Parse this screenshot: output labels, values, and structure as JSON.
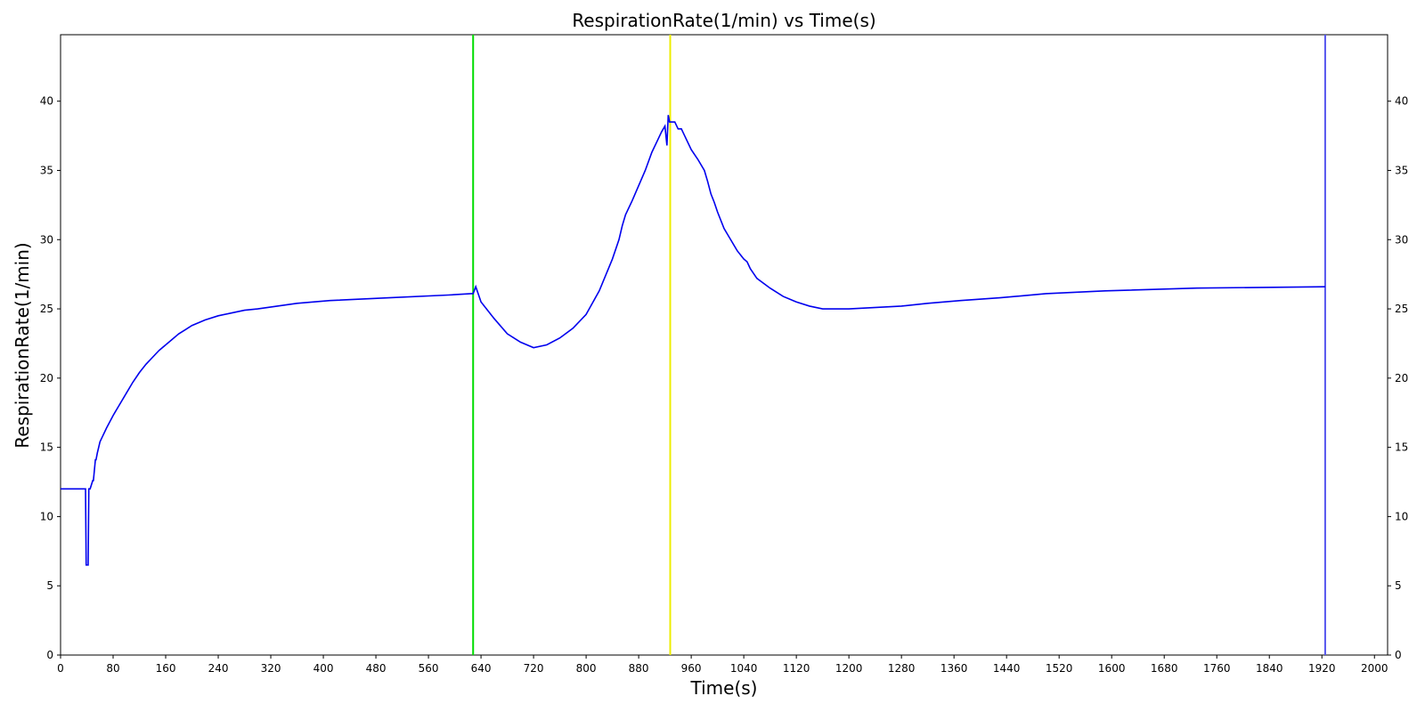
{
  "chart_data": {
    "type": "line",
    "title": "RespirationRate(1/min) vs Time(s)",
    "xlabel": "Time(s)",
    "ylabel": "RespirationRate(1/min)",
    "xlim": [
      0,
      2020
    ],
    "ylim": [
      0,
      44.8
    ],
    "x_ticks": [
      0,
      80,
      160,
      240,
      320,
      400,
      480,
      560,
      640,
      720,
      800,
      880,
      960,
      1040,
      1120,
      1200,
      1280,
      1360,
      1440,
      1520,
      1600,
      1680,
      1760,
      1840,
      1920,
      2000
    ],
    "y_ticks": [
      0,
      5,
      10,
      15,
      20,
      25,
      30,
      35,
      40
    ],
    "right_y_ticks": true,
    "grid": false,
    "series_color": "#0000ee",
    "vertical_lines": [
      {
        "x": 628,
        "color": "#00dd00"
      },
      {
        "x": 928,
        "color": "#eeee00"
      },
      {
        "x": 1925,
        "color": "#5555ee"
      }
    ],
    "series": [
      {
        "x": [
          0,
          38,
          39,
          42,
          43,
          44,
          45,
          49,
          50,
          53,
          54,
          56,
          58,
          60,
          64,
          70,
          80,
          90,
          100,
          110,
          120,
          130,
          140,
          150,
          160,
          170,
          180,
          190,
          200,
          210,
          220,
          240,
          260,
          280,
          300,
          330,
          360,
          410,
          500,
          590,
          625,
          628,
          632,
          640,
          660,
          680,
          700,
          720,
          740,
          760,
          780,
          800,
          820,
          840,
          850,
          855,
          860,
          870,
          880,
          890,
          900,
          910,
          915,
          920,
          923,
          925,
          927,
          928,
          935,
          940,
          945,
          950,
          960,
          970,
          980,
          985,
          990,
          995,
          1000,
          1010,
          1020,
          1030,
          1040,
          1045,
          1050,
          1060,
          1080,
          1100,
          1120,
          1140,
          1160,
          1200,
          1280,
          1320,
          1370,
          1430,
          1500,
          1590,
          1730,
          1925
        ],
        "y": [
          12,
          12,
          6.5,
          6.5,
          12,
          12,
          12,
          12.6,
          12.6,
          14.1,
          14.1,
          14.6,
          15.0,
          15.4,
          15.8,
          16.4,
          17.3,
          18.1,
          18.9,
          19.7,
          20.4,
          21.0,
          21.5,
          22.0,
          22.4,
          22.8,
          23.2,
          23.5,
          23.8,
          24.0,
          24.2,
          24.5,
          24.7,
          24.9,
          25.0,
          25.2,
          25.4,
          25.6,
          25.8,
          26.0,
          26.1,
          26.1,
          26.6,
          25.5,
          24.3,
          23.2,
          22.6,
          22.2,
          22.4,
          22.9,
          23.6,
          24.6,
          26.3,
          28.6,
          30.0,
          31.0,
          31.8,
          32.8,
          33.9,
          35.0,
          36.3,
          37.3,
          37.8,
          38.2,
          36.8,
          39.0,
          38.5,
          38.5,
          38.5,
          38.0,
          38.0,
          37.5,
          36.5,
          35.8,
          35.0,
          34.2,
          33.3,
          32.7,
          32.0,
          30.8,
          30.0,
          29.2,
          28.6,
          28.4,
          27.9,
          27.2,
          26.5,
          25.9,
          25.5,
          25.2,
          25.0,
          25.0,
          25.2,
          25.4,
          25.6,
          25.8,
          26.1,
          26.3,
          26.5,
          26.6
        ]
      }
    ]
  }
}
